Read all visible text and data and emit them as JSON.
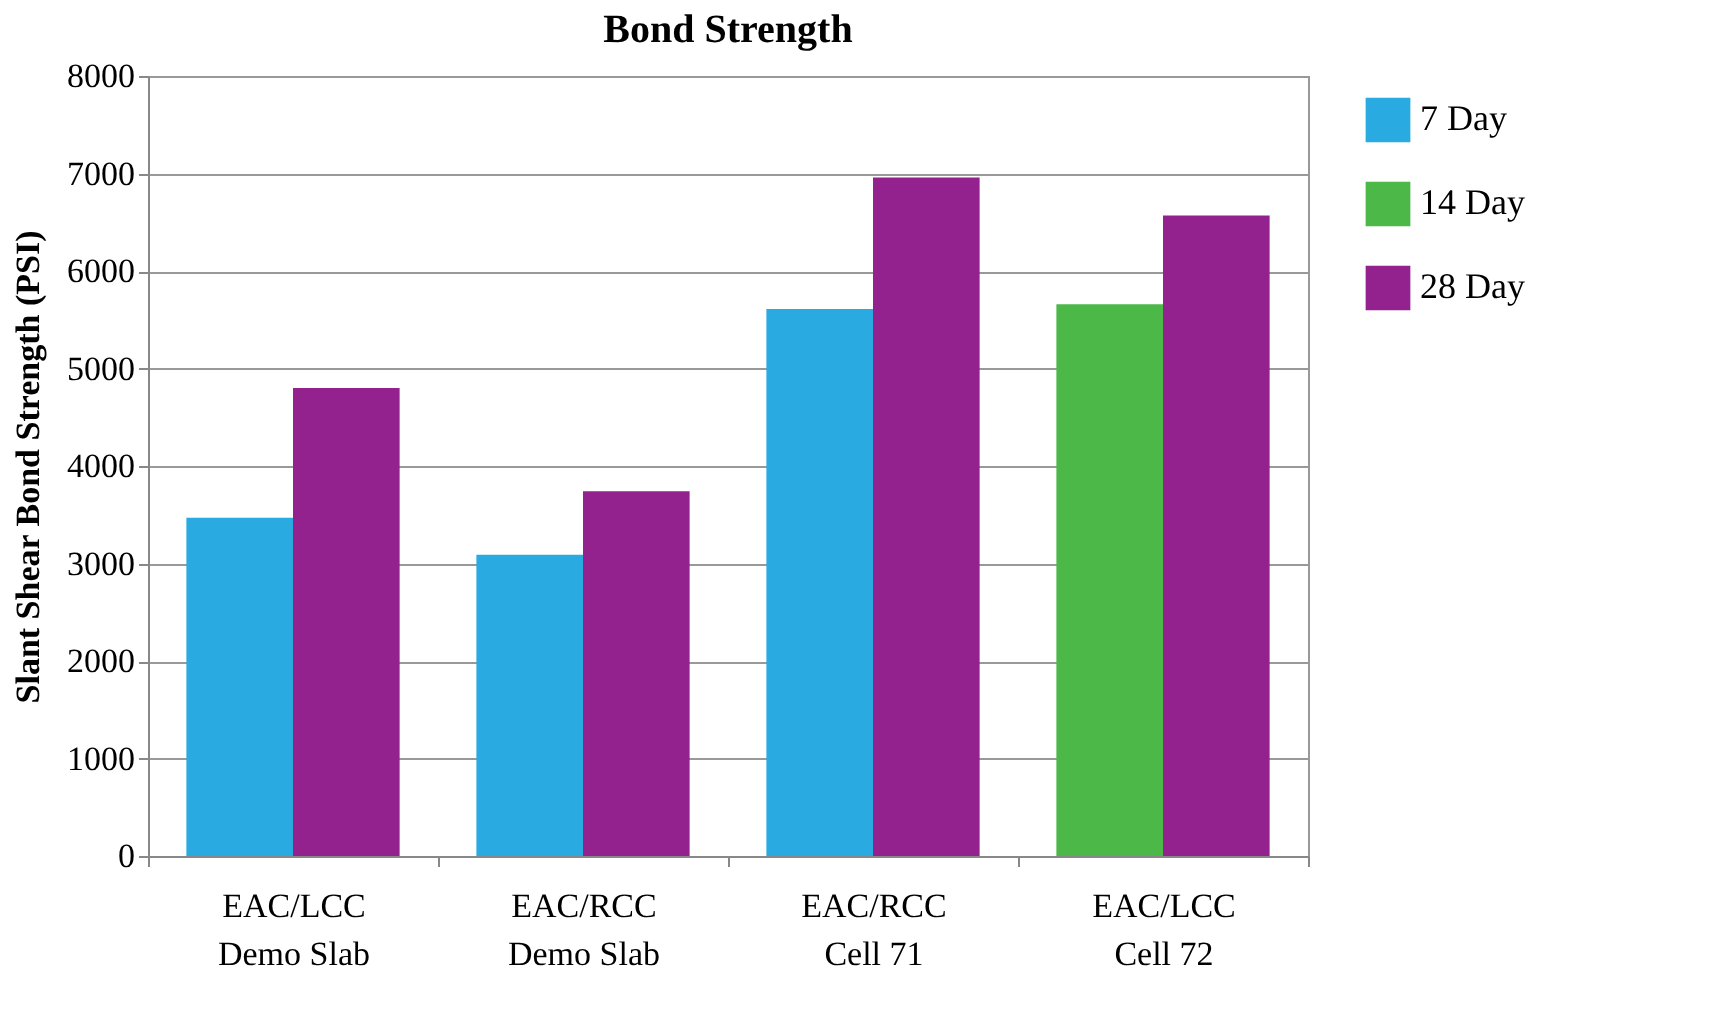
{
  "chart_data": {
    "type": "bar",
    "title": "Bond Strength",
    "ylabel": "Slant Shear Bond Strength (PSI)",
    "categories": [
      "EAC/LCC\nDemo Slab",
      "EAC/RCC\nDemo Slab",
      "EAC/RCC\nCell 71",
      "EAC/LCC\nCell 72"
    ],
    "series": [
      {
        "name": "7 Day",
        "color": "#29abe2",
        "values": [
          3470,
          3090,
          5610,
          null
        ]
      },
      {
        "name": "14 Day",
        "color": "#4cb848",
        "values": [
          null,
          null,
          null,
          5660
        ]
      },
      {
        "name": "28 Day",
        "color": "#93228f",
        "values": [
          4800,
          3740,
          6960,
          6570
        ]
      }
    ],
    "ylim": [
      0,
      8000
    ],
    "yticks": [
      0,
      1000,
      2000,
      3000,
      4000,
      5000,
      6000,
      7000,
      8000
    ],
    "grid": "y",
    "legend": "right"
  }
}
